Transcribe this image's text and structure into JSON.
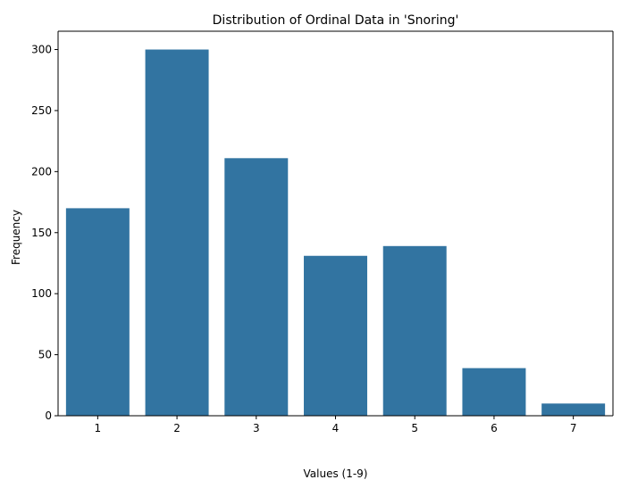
{
  "chart_data": {
    "type": "bar",
    "title": "Distribution of Ordinal Data in 'Snoring'",
    "xlabel": "Values (1-9)",
    "ylabel": "Frequency",
    "categories": [
      "1",
      "2",
      "3",
      "4",
      "5",
      "6",
      "7"
    ],
    "values": [
      170,
      300,
      211,
      131,
      139,
      39,
      10
    ],
    "ylim": [
      0,
      315
    ],
    "yticks": [
      0,
      50,
      100,
      150,
      200,
      250,
      300
    ],
    "bar_color": "#3274a1",
    "grid": false,
    "legend": "none"
  }
}
